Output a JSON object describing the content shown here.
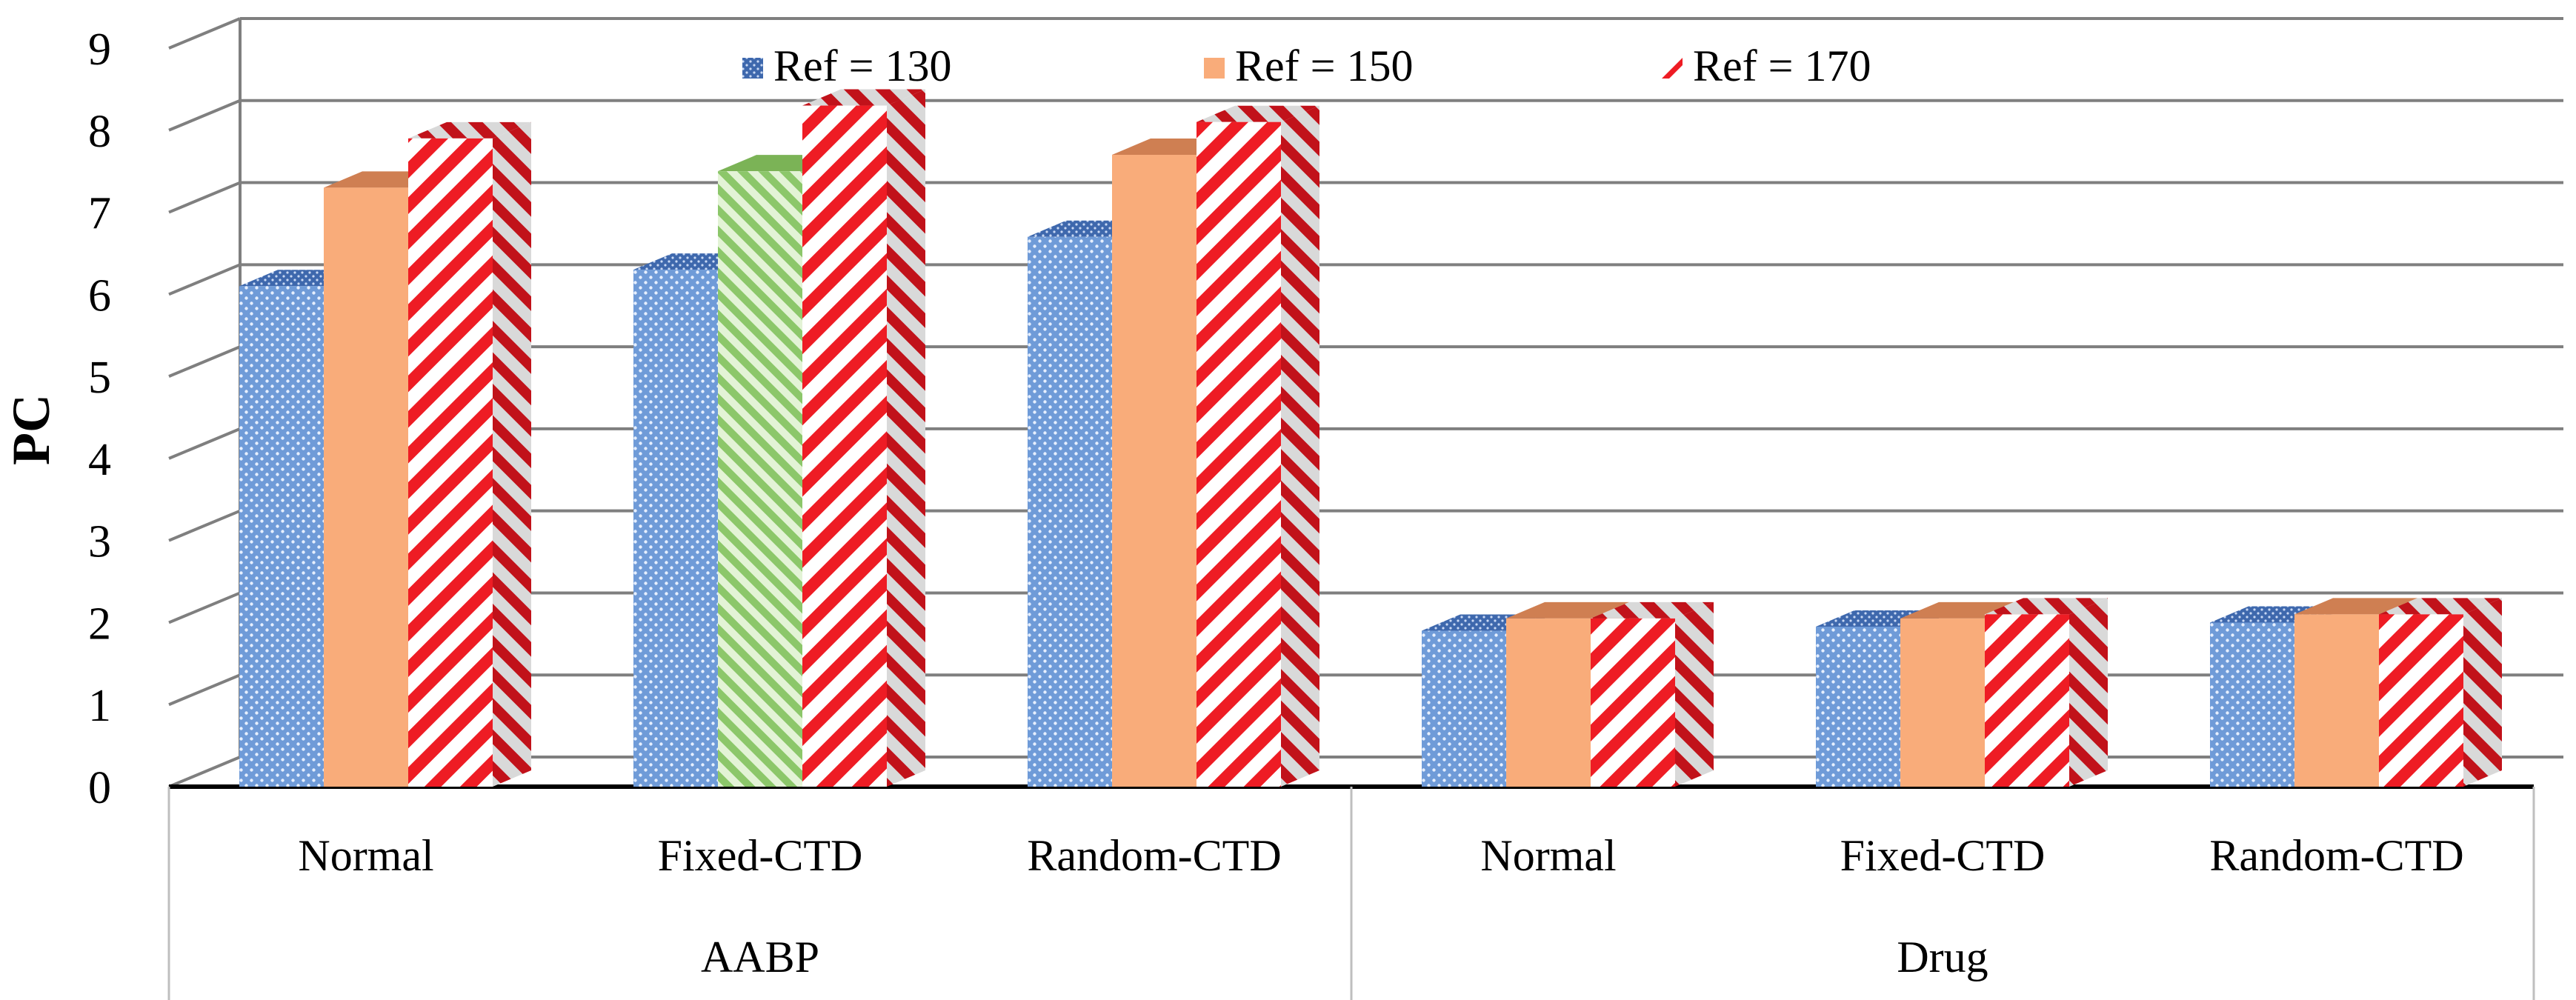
{
  "chart_data": {
    "type": "bar",
    "style": "3d-clustered-column",
    "ylabel": "PC",
    "ylim": [
      0,
      9
    ],
    "yticks": [
      "0",
      "1",
      "2",
      "3",
      "4",
      "5",
      "6",
      "7",
      "8",
      "9"
    ],
    "groups": [
      {
        "label": "AABP",
        "categories": [
          "Normal",
          "Fixed-CTD",
          "Random-CTD"
        ]
      },
      {
        "label": "Drug",
        "categories": [
          "Normal",
          "Fixed-CTD",
          "Random-CTD"
        ]
      }
    ],
    "series": [
      {
        "name": "Ref = 130",
        "pattern": "dots",
        "values": [
          6.1,
          6.3,
          6.7,
          1.9,
          1.95,
          2.0
        ],
        "colors": [
          "#6f9bd8",
          "#4e79c0"
        ]
      },
      {
        "name": "Ref = 150",
        "pattern": "solid",
        "values": [
          7.3,
          7.5,
          7.7,
          2.05,
          2.05,
          2.1
        ],
        "colors": [
          "#f9ac7a",
          "#cf7f52"
        ],
        "point_overrides": [
          {
            "index": 1,
            "pattern": "diag-green",
            "colors": [
              "#9fd17c",
              "#7bb356"
            ]
          }
        ]
      },
      {
        "name": "Ref = 170",
        "pattern": "stripes",
        "values": [
          7.9,
          8.3,
          8.1,
          2.05,
          2.1,
          2.1
        ],
        "colors": [
          "#ee1c24",
          "#b51219"
        ]
      }
    ],
    "legend": {
      "position": "top",
      "entries": [
        "Ref = 130",
        "Ref = 150",
        "Ref = 170"
      ]
    },
    "grid": true
  }
}
